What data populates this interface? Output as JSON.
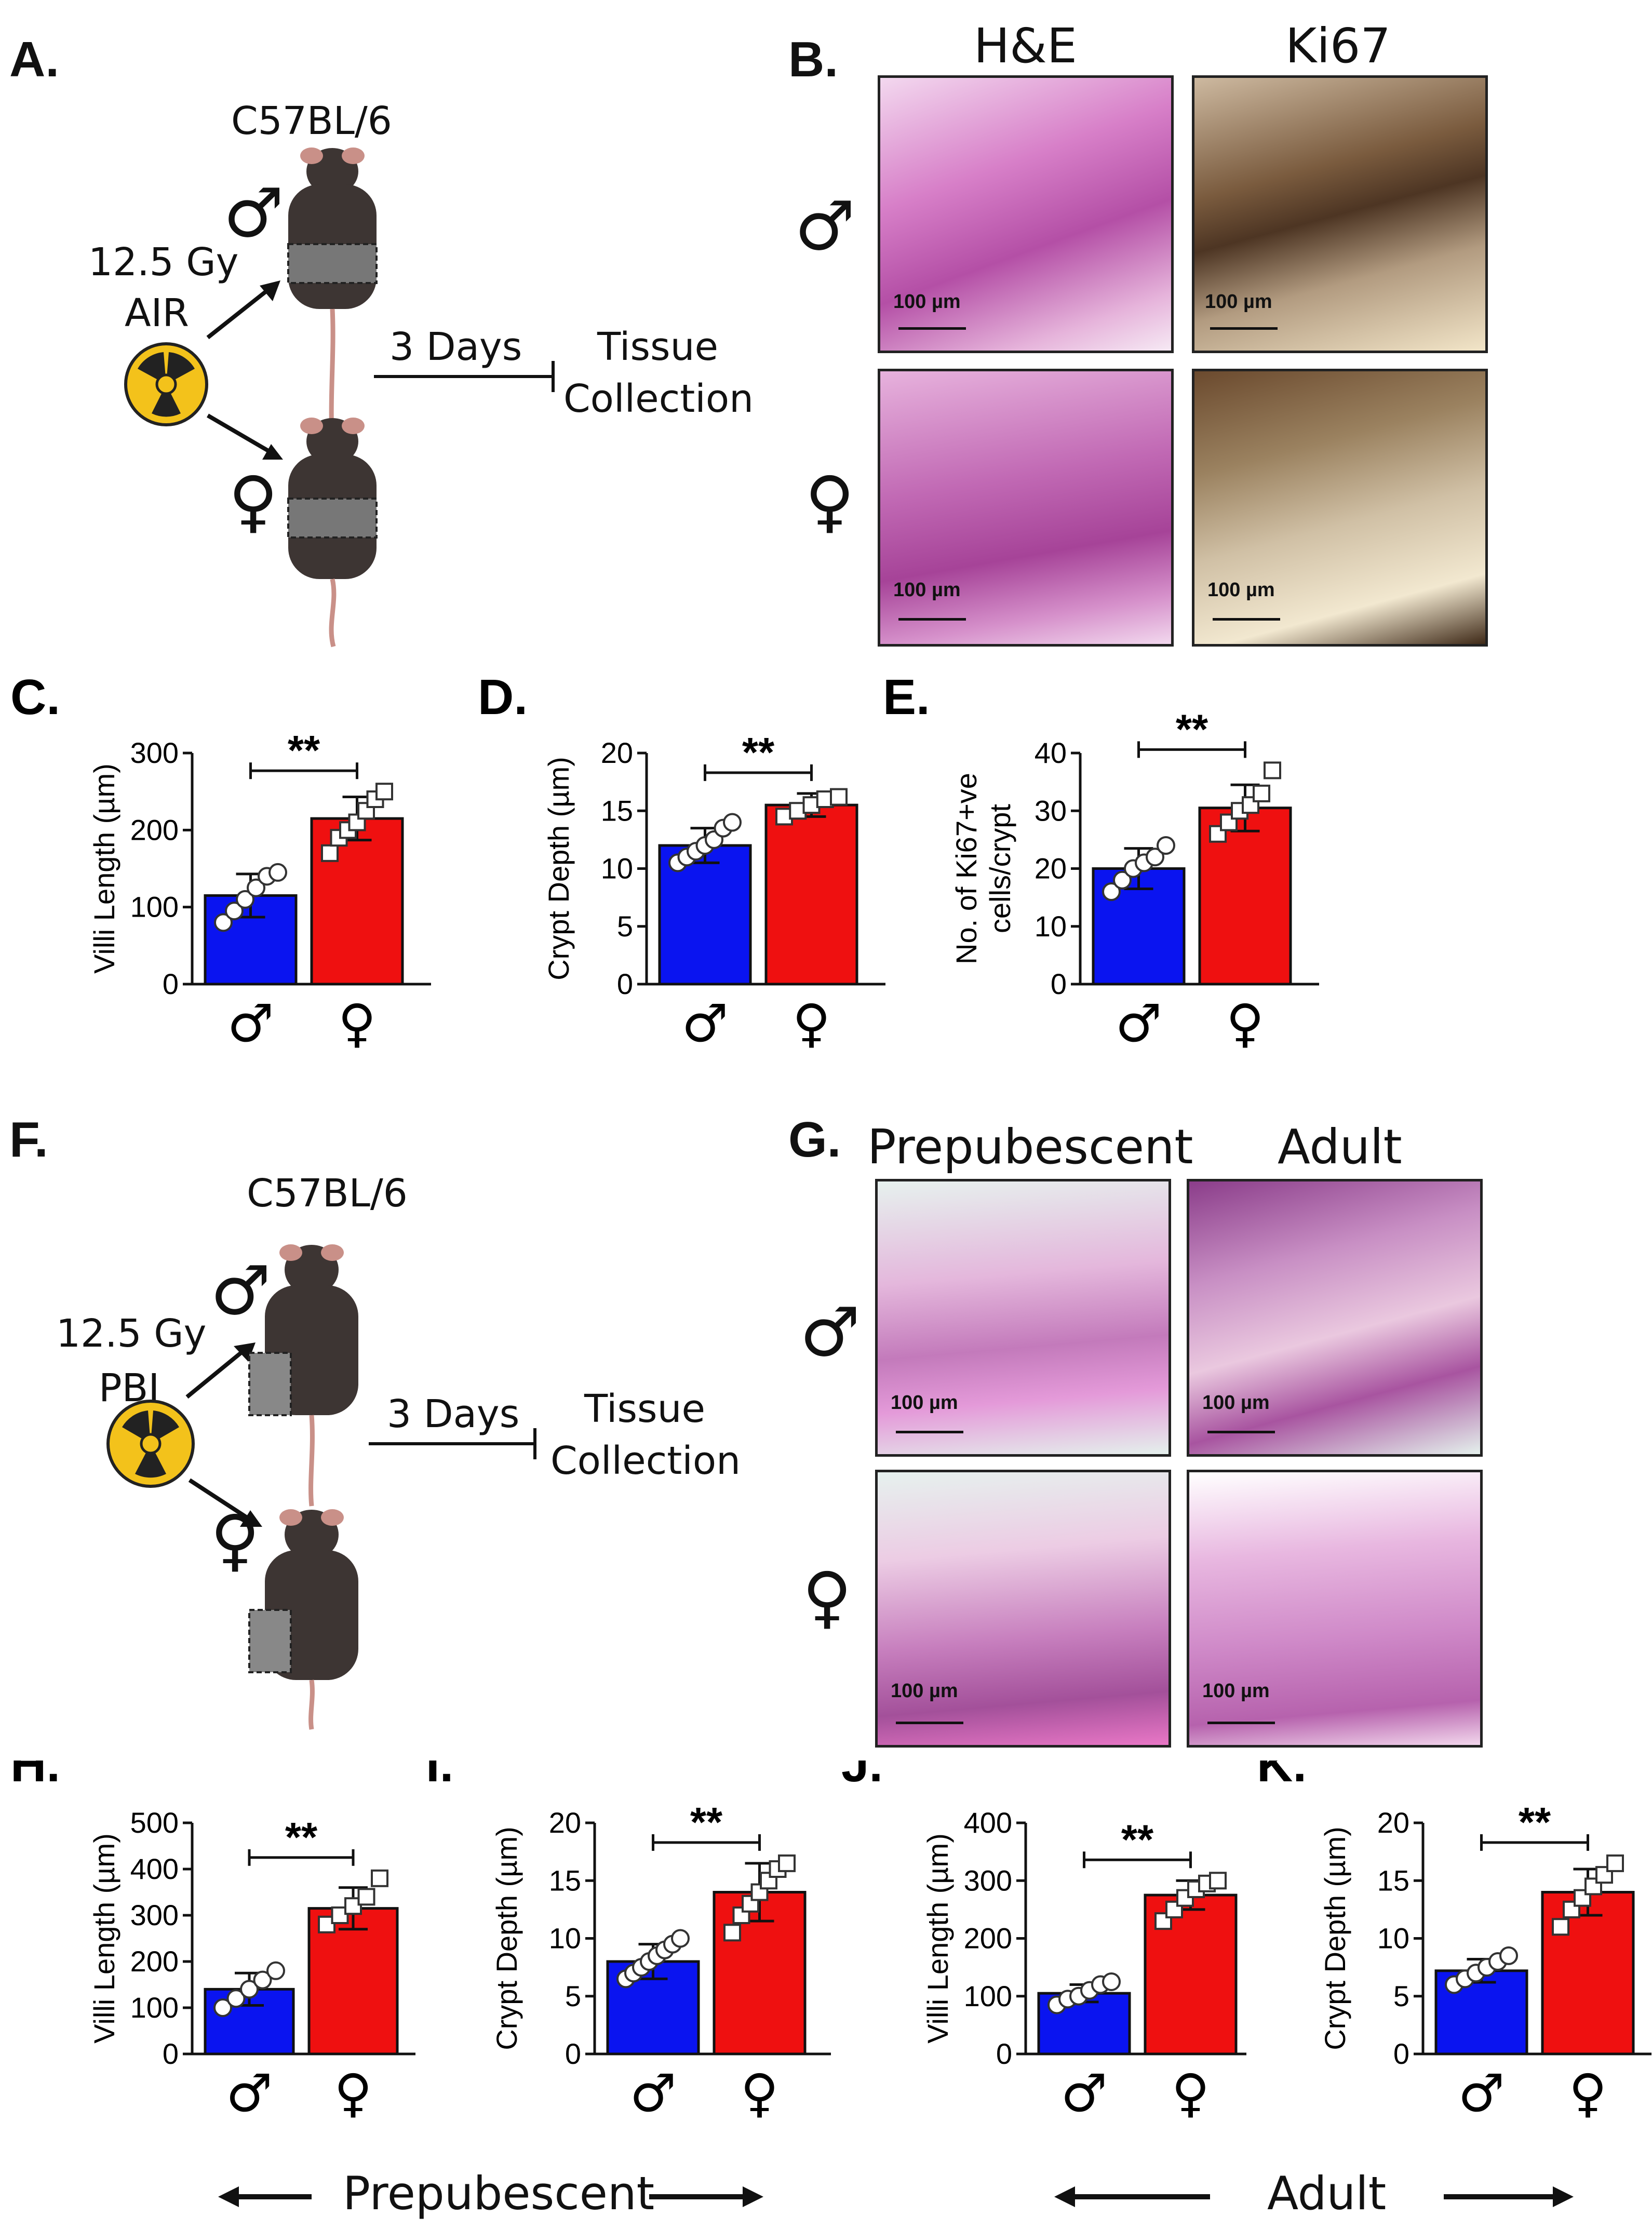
{
  "panels": {
    "A": {
      "label": "A.",
      "strain": "C57BL/6",
      "dose": "12.5 Gy",
      "mode": "AIR",
      "days": "3 Days",
      "outcome_line1": "Tissue",
      "outcome_line2": "Collection",
      "male": "♂",
      "female": "♀"
    },
    "B": {
      "label": "B.",
      "col1": "H&E",
      "col2": "Ki67",
      "male": "♂",
      "female": "♀",
      "scale": "100 µm"
    },
    "F": {
      "label": "F.",
      "strain": "C57BL/6",
      "dose": "12.5 Gy",
      "mode": "PBI",
      "days": "3 Days",
      "outcome_line1": "Tissue",
      "outcome_line2": "Collection",
      "male": "♂",
      "female": "♀"
    },
    "G": {
      "label": "G.",
      "col1": "Prepubescent",
      "col2": "Adult",
      "male": "♂",
      "female": "♀",
      "scale": "100 µm"
    }
  },
  "bottom_labels": {
    "prepubescent": "Prepubescent",
    "adult": "Adult"
  },
  "colors": {
    "male_bar": "#0a14f0",
    "female_bar": "#ef1010",
    "radiation_yellow": "#f3c21b",
    "mouse": "#3d3533",
    "tail": "#c99088"
  },
  "chart_data": [
    {
      "id": "C",
      "panel_label": "C.",
      "type": "bar",
      "categories": [
        "♂",
        "♀"
      ],
      "values": [
        115,
        215
      ],
      "errors": [
        28,
        28
      ],
      "ylabel": "Villi Length (µm)",
      "ylim": [
        0,
        300
      ],
      "yticks": [
        0,
        100,
        200,
        300
      ],
      "significance": "**",
      "points": [
        [
          80,
          95,
          110,
          125,
          140,
          145
        ],
        [
          170,
          190,
          200,
          210,
          225,
          240,
          250
        ]
      ]
    },
    {
      "id": "D",
      "panel_label": "D.",
      "type": "bar",
      "categories": [
        "♂",
        "♀"
      ],
      "values": [
        12,
        15.5
      ],
      "errors": [
        1.5,
        1.0
      ],
      "ylabel": "Crypt Depth (µm)",
      "ylim": [
        0,
        20
      ],
      "yticks": [
        0,
        5,
        10,
        15,
        20
      ],
      "significance": "**",
      "points": [
        [
          10.5,
          11,
          11.5,
          12,
          12.5,
          13.5,
          14
        ],
        [
          14.5,
          15,
          15.5,
          16,
          16.2
        ]
      ]
    },
    {
      "id": "E",
      "panel_label": "E.",
      "type": "bar",
      "categories": [
        "♂",
        "♀"
      ],
      "values": [
        20,
        30.5
      ],
      "errors": [
        3.5,
        4
      ],
      "ylabel_line1": "No. of Ki67+ve",
      "ylabel_line2": "cells/crypt",
      "ylim": [
        0,
        40
      ],
      "yticks": [
        0,
        10,
        20,
        30,
        40
      ],
      "significance": "**",
      "points": [
        [
          16,
          18,
          20,
          21,
          22,
          24
        ],
        [
          26,
          28,
          30,
          31,
          33,
          37
        ]
      ]
    },
    {
      "id": "H",
      "panel_label": "H.",
      "type": "bar",
      "categories": [
        "♂",
        "♀"
      ],
      "values": [
        140,
        315
      ],
      "errors": [
        35,
        45
      ],
      "ylabel": "Villi Length (µm)",
      "ylim": [
        0,
        500
      ],
      "yticks": [
        0,
        100,
        200,
        300,
        400,
        500
      ],
      "significance": "**",
      "points": [
        [
          100,
          120,
          140,
          160,
          180
        ],
        [
          280,
          300,
          320,
          340,
          380
        ]
      ]
    },
    {
      "id": "I",
      "panel_label": "I.",
      "type": "bar",
      "categories": [
        "♂",
        "♀"
      ],
      "values": [
        8,
        14
      ],
      "errors": [
        1.5,
        2.5
      ],
      "ylabel": "Crypt Depth (µm)",
      "ylim": [
        0,
        20
      ],
      "yticks": [
        0,
        5,
        10,
        15,
        20
      ],
      "significance": "**",
      "points": [
        [
          6.5,
          7,
          7.5,
          8,
          8.5,
          9,
          9.5,
          10
        ],
        [
          10.5,
          12,
          13,
          14,
          15,
          16,
          16.5
        ]
      ]
    },
    {
      "id": "J",
      "panel_label": "J.",
      "type": "bar",
      "categories": [
        "♂",
        "♀"
      ],
      "values": [
        105,
        275
      ],
      "errors": [
        15,
        25
      ],
      "ylabel": "Villi Length (µm)",
      "ylim": [
        0,
        400
      ],
      "yticks": [
        0,
        100,
        200,
        300,
        400
      ],
      "significance": "**",
      "points": [
        [
          85,
          95,
          100,
          110,
          120,
          125
        ],
        [
          230,
          250,
          270,
          285,
          295,
          300
        ]
      ]
    },
    {
      "id": "K",
      "panel_label": "K.",
      "type": "bar",
      "categories": [
        "♂",
        "♀"
      ],
      "values": [
        7.2,
        14
      ],
      "errors": [
        1,
        2
      ],
      "ylabel": "Crypt Depth (µm)",
      "ylim": [
        0,
        20
      ],
      "yticks": [
        0,
        5,
        10,
        15,
        20
      ],
      "significance": "**",
      "points": [
        [
          6,
          6.5,
          7,
          7.5,
          8,
          8.5
        ],
        [
          11,
          12.5,
          13.5,
          14.5,
          15.5,
          16.5
        ]
      ]
    }
  ]
}
